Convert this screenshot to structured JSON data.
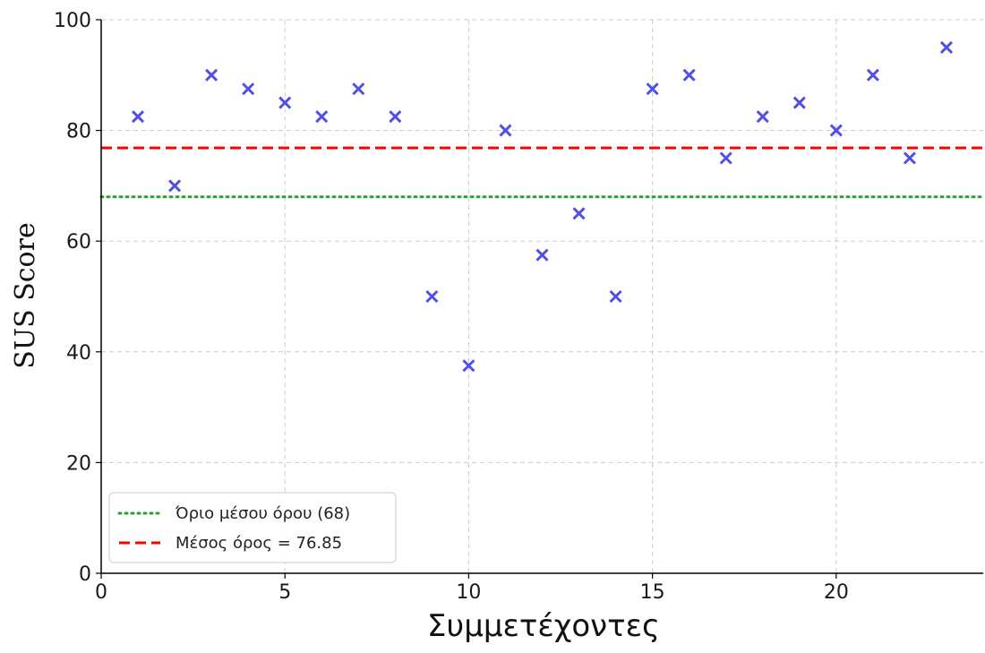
{
  "chart_data": {
    "type": "scatter",
    "xlabel": "Συμμετέχοντες",
    "ylabel": "SUS Score",
    "xlim": [
      0,
      24
    ],
    "ylim": [
      0,
      100
    ],
    "x_ticks": [
      0,
      5,
      10,
      15,
      20
    ],
    "y_ticks": [
      0,
      20,
      40,
      60,
      80,
      100
    ],
    "grid": true,
    "legend_position": "bottom-left",
    "series": [
      {
        "marker": "x",
        "color": "#5050e6",
        "x": [
          1,
          2,
          3,
          4,
          5,
          6,
          7,
          8,
          9,
          10,
          11,
          12,
          13,
          14,
          15,
          16,
          17,
          18,
          19,
          20,
          21,
          22,
          23
        ],
        "y": [
          82.5,
          70,
          90,
          87.5,
          85,
          82.5,
          87.5,
          82.5,
          50,
          37.5,
          80,
          57.5,
          65,
          50,
          87.5,
          90,
          75,
          82.5,
          85,
          80,
          90,
          75,
          95
        ]
      }
    ],
    "reference_lines": [
      {
        "name": "Όριο μέσου όρου (68)",
        "y": 68,
        "style": "dotted",
        "color": "#2ca02c"
      },
      {
        "name": "Μέσος όρος = 76.85",
        "y": 76.85,
        "style": "dashed",
        "color": "#ff0000"
      }
    ]
  }
}
